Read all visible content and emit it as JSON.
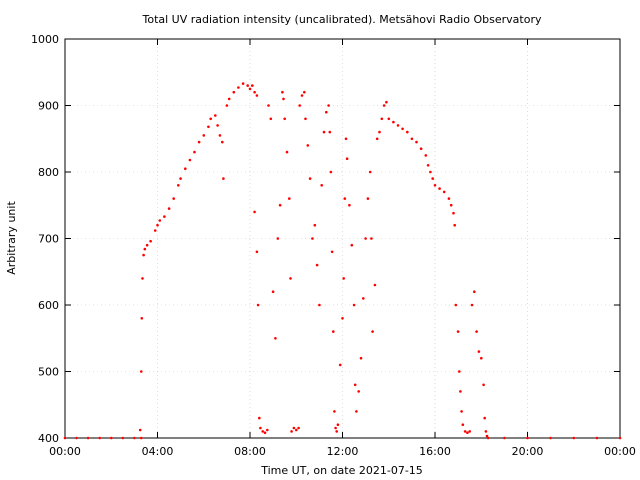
{
  "chart_data": {
    "type": "scatter",
    "title": "Total UV radiation intensity (uncalibrated). Metsähovi Radio Observatory",
    "xlabel": "Time UT, on date 2021-07-15",
    "ylabel": "Arbitrary unit",
    "x_unit": "hours UT",
    "xlim": [
      0,
      24
    ],
    "ylim": [
      400,
      1000
    ],
    "x_ticks": [
      {
        "value": 0,
        "label": "00:00"
      },
      {
        "value": 4,
        "label": "04:00"
      },
      {
        "value": 8,
        "label": "08:00"
      },
      {
        "value": 12,
        "label": "12:00"
      },
      {
        "value": 16,
        "label": "16:00"
      },
      {
        "value": 20,
        "label": "20:00"
      },
      {
        "value": 24,
        "label": "00:00"
      }
    ],
    "y_ticks": [
      {
        "value": 400,
        "label": "400"
      },
      {
        "value": 500,
        "label": "500"
      },
      {
        "value": 600,
        "label": "600"
      },
      {
        "value": 700,
        "label": "700"
      },
      {
        "value": 800,
        "label": "800"
      },
      {
        "value": 900,
        "label": "900"
      },
      {
        "value": 1000,
        "label": "1000"
      }
    ],
    "grid": true,
    "marker_color": "#ff0000",
    "series": [
      {
        "points": [
          [
            0.0,
            400
          ],
          [
            0.5,
            400
          ],
          [
            1.0,
            400
          ],
          [
            1.5,
            400
          ],
          [
            2.0,
            400
          ],
          [
            2.5,
            400
          ],
          [
            3.0,
            400
          ],
          [
            3.3,
            400
          ],
          [
            3.25,
            412
          ],
          [
            3.3,
            500
          ],
          [
            3.32,
            580
          ],
          [
            3.35,
            640
          ],
          [
            3.4,
            675
          ],
          [
            3.45,
            684
          ],
          [
            3.55,
            690
          ],
          [
            3.7,
            696
          ],
          [
            3.9,
            712
          ],
          [
            4.0,
            720
          ],
          [
            4.1,
            727
          ],
          [
            4.3,
            733
          ],
          [
            4.5,
            745
          ],
          [
            4.7,
            760
          ],
          [
            4.9,
            780
          ],
          [
            5.0,
            790
          ],
          [
            5.2,
            805
          ],
          [
            5.4,
            818
          ],
          [
            5.6,
            830
          ],
          [
            5.8,
            845
          ],
          [
            6.0,
            855
          ],
          [
            6.2,
            868
          ],
          [
            6.3,
            880
          ],
          [
            6.5,
            885
          ],
          [
            6.6,
            870
          ],
          [
            6.7,
            855
          ],
          [
            6.8,
            845
          ],
          [
            6.85,
            790
          ],
          [
            7.0,
            900
          ],
          [
            7.1,
            910
          ],
          [
            7.3,
            920
          ],
          [
            7.5,
            927
          ],
          [
            7.7,
            933
          ],
          [
            7.9,
            930
          ],
          [
            8.0,
            925
          ],
          [
            8.1,
            930
          ],
          [
            8.2,
            920
          ],
          [
            8.3,
            915
          ],
          [
            8.2,
            740
          ],
          [
            8.3,
            680
          ],
          [
            8.35,
            600
          ],
          [
            8.4,
            430
          ],
          [
            8.45,
            415
          ],
          [
            8.55,
            410
          ],
          [
            8.65,
            408
          ],
          [
            8.75,
            412
          ],
          [
            8.8,
            900
          ],
          [
            8.9,
            880
          ],
          [
            9.0,
            620
          ],
          [
            9.1,
            550
          ],
          [
            9.2,
            700
          ],
          [
            9.3,
            750
          ],
          [
            9.4,
            920
          ],
          [
            9.45,
            910
          ],
          [
            9.5,
            880
          ],
          [
            9.6,
            830
          ],
          [
            9.7,
            760
          ],
          [
            9.75,
            640
          ],
          [
            9.8,
            410
          ],
          [
            9.9,
            415
          ],
          [
            10.0,
            412
          ],
          [
            10.1,
            415
          ],
          [
            10.15,
            900
          ],
          [
            10.25,
            915
          ],
          [
            10.35,
            920
          ],
          [
            10.4,
            880
          ],
          [
            10.5,
            840
          ],
          [
            10.6,
            790
          ],
          [
            10.7,
            700
          ],
          [
            10.8,
            720
          ],
          [
            10.9,
            660
          ],
          [
            11.0,
            600
          ],
          [
            11.1,
            780
          ],
          [
            11.2,
            860
          ],
          [
            11.3,
            890
          ],
          [
            11.4,
            900
          ],
          [
            11.45,
            860
          ],
          [
            11.5,
            800
          ],
          [
            11.55,
            680
          ],
          [
            11.6,
            560
          ],
          [
            11.65,
            440
          ],
          [
            11.7,
            415
          ],
          [
            11.75,
            410
          ],
          [
            11.8,
            420
          ],
          [
            11.9,
            510
          ],
          [
            12.0,
            580
          ],
          [
            12.05,
            640
          ],
          [
            12.1,
            760
          ],
          [
            12.15,
            850
          ],
          [
            12.2,
            820
          ],
          [
            12.3,
            750
          ],
          [
            12.4,
            690
          ],
          [
            12.5,
            600
          ],
          [
            12.55,
            480
          ],
          [
            12.6,
            440
          ],
          [
            12.7,
            470
          ],
          [
            12.8,
            520
          ],
          [
            12.9,
            610
          ],
          [
            13.0,
            700
          ],
          [
            13.1,
            760
          ],
          [
            13.2,
            800
          ],
          [
            13.25,
            700
          ],
          [
            13.3,
            560
          ],
          [
            13.4,
            630
          ],
          [
            13.5,
            850
          ],
          [
            13.6,
            860
          ],
          [
            13.7,
            880
          ],
          [
            13.8,
            900
          ],
          [
            13.9,
            905
          ],
          [
            14.0,
            880
          ],
          [
            14.2,
            875
          ],
          [
            14.4,
            870
          ],
          [
            14.6,
            865
          ],
          [
            14.8,
            860
          ],
          [
            15.0,
            850
          ],
          [
            15.2,
            845
          ],
          [
            15.4,
            835
          ],
          [
            15.6,
            825
          ],
          [
            15.7,
            810
          ],
          [
            15.8,
            800
          ],
          [
            15.9,
            790
          ],
          [
            16.0,
            780
          ],
          [
            16.2,
            775
          ],
          [
            16.4,
            770
          ],
          [
            16.6,
            760
          ],
          [
            16.7,
            750
          ],
          [
            16.8,
            738
          ],
          [
            16.85,
            720
          ],
          [
            16.9,
            600
          ],
          [
            17.0,
            560
          ],
          [
            17.05,
            500
          ],
          [
            17.1,
            470
          ],
          [
            17.15,
            440
          ],
          [
            17.2,
            420
          ],
          [
            17.3,
            410
          ],
          [
            17.4,
            408
          ],
          [
            17.5,
            410
          ],
          [
            17.6,
            600
          ],
          [
            17.7,
            620
          ],
          [
            17.8,
            560
          ],
          [
            17.9,
            530
          ],
          [
            18.0,
            520
          ],
          [
            18.1,
            480
          ],
          [
            18.15,
            430
          ],
          [
            18.2,
            410
          ],
          [
            18.25,
            403
          ],
          [
            18.3,
            400
          ],
          [
            19.0,
            400
          ],
          [
            20.0,
            400
          ],
          [
            21.0,
            400
          ],
          [
            22.0,
            400
          ],
          [
            23.0,
            400
          ],
          [
            24.0,
            400
          ]
        ]
      }
    ]
  }
}
